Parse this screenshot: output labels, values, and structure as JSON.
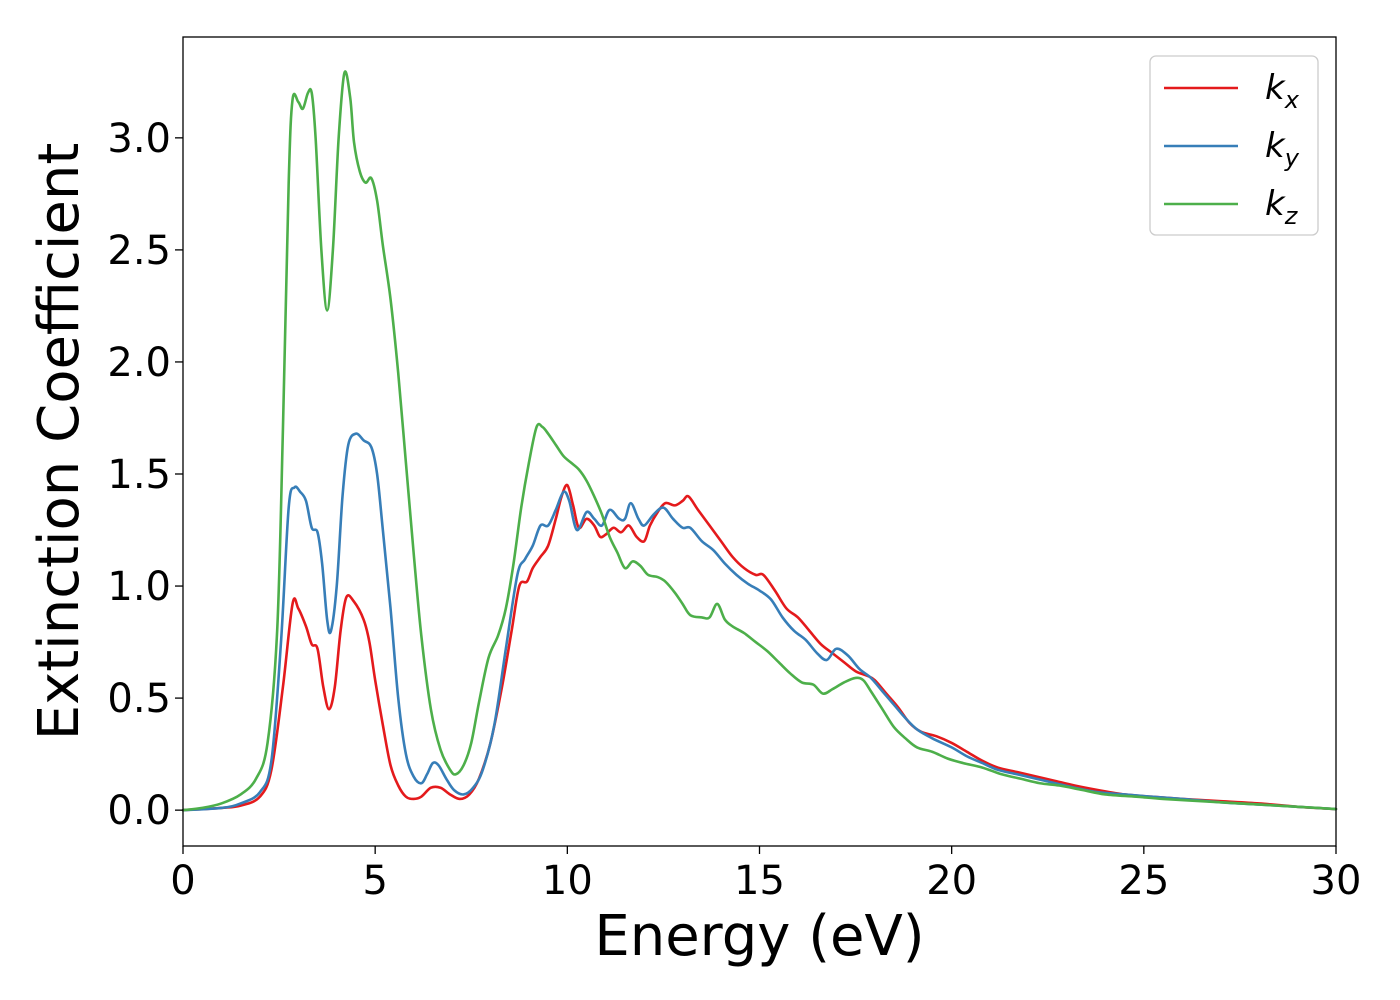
{
  "chart_data": {
    "type": "line",
    "title": "",
    "xlabel": "Energy (eV)",
    "ylabel": "Extinction Coefficient",
    "xlim": [
      0,
      30
    ],
    "ylim": [
      -0.16,
      3.45
    ],
    "xticks": [
      0,
      5,
      10,
      15,
      20,
      25,
      30
    ],
    "xtick_labels": [
      "0",
      "5",
      "10",
      "15",
      "20",
      "25",
      "30"
    ],
    "yticks": [
      0.0,
      0.5,
      1.0,
      1.5,
      2.0,
      2.5,
      3.0
    ],
    "ytick_labels": [
      "0.0",
      "0.5",
      "1.0",
      "1.5",
      "2.0",
      "2.5",
      "3.0"
    ],
    "grid": false,
    "legend_position": "top-right",
    "series": [
      {
        "name": "k_x",
        "legend_main": "k",
        "legend_sub": "x",
        "color": "#e41a1c",
        "points": [
          [
            0,
            0.0
          ],
          [
            1,
            0.01
          ],
          [
            1.5,
            0.02
          ],
          [
            2,
            0.06
          ],
          [
            2.3,
            0.18
          ],
          [
            2.6,
            0.55
          ],
          [
            2.85,
            0.92
          ],
          [
            3.0,
            0.9
          ],
          [
            3.2,
            0.82
          ],
          [
            3.35,
            0.74
          ],
          [
            3.5,
            0.72
          ],
          [
            3.65,
            0.55
          ],
          [
            3.8,
            0.45
          ],
          [
            3.95,
            0.55
          ],
          [
            4.1,
            0.8
          ],
          [
            4.25,
            0.95
          ],
          [
            4.45,
            0.93
          ],
          [
            4.7,
            0.85
          ],
          [
            4.85,
            0.75
          ],
          [
            5.0,
            0.58
          ],
          [
            5.2,
            0.38
          ],
          [
            5.4,
            0.2
          ],
          [
            5.6,
            0.11
          ],
          [
            5.8,
            0.06
          ],
          [
            6.0,
            0.05
          ],
          [
            6.2,
            0.06
          ],
          [
            6.45,
            0.1
          ],
          [
            6.7,
            0.1
          ],
          [
            6.95,
            0.07
          ],
          [
            7.2,
            0.05
          ],
          [
            7.45,
            0.07
          ],
          [
            7.7,
            0.14
          ],
          [
            8.0,
            0.3
          ],
          [
            8.3,
            0.55
          ],
          [
            8.55,
            0.8
          ],
          [
            8.75,
            1.0
          ],
          [
            8.95,
            1.02
          ],
          [
            9.1,
            1.08
          ],
          [
            9.3,
            1.13
          ],
          [
            9.5,
            1.18
          ],
          [
            9.7,
            1.3
          ],
          [
            9.85,
            1.4
          ],
          [
            10.0,
            1.45
          ],
          [
            10.15,
            1.36
          ],
          [
            10.3,
            1.26
          ],
          [
            10.5,
            1.3
          ],
          [
            10.7,
            1.27
          ],
          [
            10.85,
            1.22
          ],
          [
            11.0,
            1.23
          ],
          [
            11.2,
            1.26
          ],
          [
            11.4,
            1.24
          ],
          [
            11.6,
            1.27
          ],
          [
            11.8,
            1.22
          ],
          [
            12.0,
            1.2
          ],
          [
            12.15,
            1.27
          ],
          [
            12.35,
            1.33
          ],
          [
            12.55,
            1.37
          ],
          [
            12.8,
            1.36
          ],
          [
            13.0,
            1.38
          ],
          [
            13.15,
            1.4
          ],
          [
            13.4,
            1.34
          ],
          [
            13.7,
            1.27
          ],
          [
            14.0,
            1.2
          ],
          [
            14.3,
            1.13
          ],
          [
            14.6,
            1.08
          ],
          [
            14.9,
            1.05
          ],
          [
            15.1,
            1.05
          ],
          [
            15.4,
            0.98
          ],
          [
            15.7,
            0.9
          ],
          [
            16.0,
            0.86
          ],
          [
            16.3,
            0.8
          ],
          [
            16.6,
            0.74
          ],
          [
            16.9,
            0.7
          ],
          [
            17.2,
            0.66
          ],
          [
            17.5,
            0.62
          ],
          [
            17.8,
            0.6
          ],
          [
            18.0,
            0.58
          ],
          [
            18.3,
            0.52
          ],
          [
            18.6,
            0.46
          ],
          [
            18.9,
            0.39
          ],
          [
            19.2,
            0.35
          ],
          [
            19.6,
            0.33
          ],
          [
            20.0,
            0.3
          ],
          [
            20.4,
            0.26
          ],
          [
            20.8,
            0.22
          ],
          [
            21.2,
            0.19
          ],
          [
            21.7,
            0.17
          ],
          [
            22.2,
            0.15
          ],
          [
            22.7,
            0.13
          ],
          [
            23.2,
            0.11
          ],
          [
            23.8,
            0.09
          ],
          [
            24.5,
            0.07
          ],
          [
            25.2,
            0.06
          ],
          [
            26.0,
            0.05
          ],
          [
            27.0,
            0.04
          ],
          [
            28.0,
            0.03
          ],
          [
            29.0,
            0.015
          ],
          [
            30.0,
            0.005
          ]
        ]
      },
      {
        "name": "k_y",
        "legend_main": "k",
        "legend_sub": "y",
        "color": "#377eb8",
        "points": [
          [
            0,
            0.0
          ],
          [
            1,
            0.01
          ],
          [
            1.5,
            0.03
          ],
          [
            2,
            0.08
          ],
          [
            2.3,
            0.22
          ],
          [
            2.55,
            0.75
          ],
          [
            2.75,
            1.35
          ],
          [
            2.9,
            1.44
          ],
          [
            3.05,
            1.42
          ],
          [
            3.2,
            1.38
          ],
          [
            3.35,
            1.26
          ],
          [
            3.5,
            1.24
          ],
          [
            3.62,
            1.1
          ],
          [
            3.75,
            0.85
          ],
          [
            3.85,
            0.8
          ],
          [
            4.0,
            1.0
          ],
          [
            4.15,
            1.4
          ],
          [
            4.3,
            1.63
          ],
          [
            4.5,
            1.68
          ],
          [
            4.7,
            1.65
          ],
          [
            4.9,
            1.62
          ],
          [
            5.05,
            1.5
          ],
          [
            5.2,
            1.25
          ],
          [
            5.4,
            0.9
          ],
          [
            5.6,
            0.5
          ],
          [
            5.8,
            0.25
          ],
          [
            6.0,
            0.15
          ],
          [
            6.2,
            0.12
          ],
          [
            6.35,
            0.16
          ],
          [
            6.5,
            0.21
          ],
          [
            6.65,
            0.2
          ],
          [
            6.85,
            0.14
          ],
          [
            7.05,
            0.09
          ],
          [
            7.3,
            0.07
          ],
          [
            7.55,
            0.1
          ],
          [
            7.8,
            0.18
          ],
          [
            8.1,
            0.38
          ],
          [
            8.4,
            0.72
          ],
          [
            8.7,
            1.05
          ],
          [
            8.9,
            1.12
          ],
          [
            9.1,
            1.18
          ],
          [
            9.3,
            1.27
          ],
          [
            9.5,
            1.27
          ],
          [
            9.7,
            1.34
          ],
          [
            9.9,
            1.42
          ],
          [
            10.05,
            1.38
          ],
          [
            10.25,
            1.25
          ],
          [
            10.5,
            1.33
          ],
          [
            10.7,
            1.3
          ],
          [
            10.9,
            1.27
          ],
          [
            11.1,
            1.34
          ],
          [
            11.35,
            1.3
          ],
          [
            11.5,
            1.3
          ],
          [
            11.65,
            1.37
          ],
          [
            11.85,
            1.3
          ],
          [
            12.0,
            1.27
          ],
          [
            12.25,
            1.32
          ],
          [
            12.5,
            1.35
          ],
          [
            12.75,
            1.3
          ],
          [
            13.0,
            1.26
          ],
          [
            13.2,
            1.26
          ],
          [
            13.5,
            1.2
          ],
          [
            13.8,
            1.16
          ],
          [
            14.1,
            1.1
          ],
          [
            14.4,
            1.05
          ],
          [
            14.7,
            1.01
          ],
          [
            15.0,
            0.98
          ],
          [
            15.3,
            0.94
          ],
          [
            15.6,
            0.86
          ],
          [
            15.9,
            0.8
          ],
          [
            16.2,
            0.76
          ],
          [
            16.5,
            0.7
          ],
          [
            16.75,
            0.67
          ],
          [
            17.0,
            0.72
          ],
          [
            17.3,
            0.69
          ],
          [
            17.6,
            0.63
          ],
          [
            17.9,
            0.59
          ],
          [
            18.2,
            0.53
          ],
          [
            18.5,
            0.47
          ],
          [
            18.8,
            0.41
          ],
          [
            19.1,
            0.36
          ],
          [
            19.5,
            0.32
          ],
          [
            20.0,
            0.28
          ],
          [
            20.4,
            0.24
          ],
          [
            20.8,
            0.21
          ],
          [
            21.2,
            0.18
          ],
          [
            21.7,
            0.16
          ],
          [
            22.2,
            0.14
          ],
          [
            22.7,
            0.12
          ],
          [
            23.2,
            0.1
          ],
          [
            23.8,
            0.08
          ],
          [
            24.5,
            0.07
          ],
          [
            25.2,
            0.06
          ],
          [
            26.0,
            0.05
          ],
          [
            27.0,
            0.035
          ],
          [
            28.0,
            0.025
          ],
          [
            29.0,
            0.015
          ],
          [
            30.0,
            0.005
          ]
        ]
      },
      {
        "name": "k_z",
        "legend_main": "k",
        "legend_sub": "z",
        "color": "#4daf4a",
        "points": [
          [
            0,
            0.0
          ],
          [
            0.5,
            0.01
          ],
          [
            1,
            0.03
          ],
          [
            1.5,
            0.07
          ],
          [
            1.9,
            0.14
          ],
          [
            2.2,
            0.3
          ],
          [
            2.45,
            0.8
          ],
          [
            2.6,
            1.7
          ],
          [
            2.75,
            2.8
          ],
          [
            2.85,
            3.17
          ],
          [
            3.0,
            3.16
          ],
          [
            3.12,
            3.13
          ],
          [
            3.25,
            3.2
          ],
          [
            3.35,
            3.2
          ],
          [
            3.45,
            3.0
          ],
          [
            3.6,
            2.5
          ],
          [
            3.75,
            2.23
          ],
          [
            3.9,
            2.5
          ],
          [
            4.05,
            3.0
          ],
          [
            4.2,
            3.29
          ],
          [
            4.35,
            3.18
          ],
          [
            4.45,
            2.98
          ],
          [
            4.6,
            2.85
          ],
          [
            4.75,
            2.8
          ],
          [
            4.9,
            2.82
          ],
          [
            5.05,
            2.72
          ],
          [
            5.2,
            2.52
          ],
          [
            5.4,
            2.28
          ],
          [
            5.6,
            1.95
          ],
          [
            5.8,
            1.55
          ],
          [
            6.0,
            1.15
          ],
          [
            6.2,
            0.78
          ],
          [
            6.45,
            0.45
          ],
          [
            6.7,
            0.27
          ],
          [
            6.95,
            0.18
          ],
          [
            7.1,
            0.16
          ],
          [
            7.3,
            0.2
          ],
          [
            7.5,
            0.3
          ],
          [
            7.7,
            0.48
          ],
          [
            7.95,
            0.68
          ],
          [
            8.2,
            0.78
          ],
          [
            8.4,
            0.9
          ],
          [
            8.6,
            1.1
          ],
          [
            8.8,
            1.35
          ],
          [
            9.0,
            1.55
          ],
          [
            9.2,
            1.71
          ],
          [
            9.35,
            1.71
          ],
          [
            9.5,
            1.68
          ],
          [
            9.7,
            1.63
          ],
          [
            9.9,
            1.58
          ],
          [
            10.1,
            1.55
          ],
          [
            10.3,
            1.52
          ],
          [
            10.5,
            1.47
          ],
          [
            10.7,
            1.4
          ],
          [
            10.9,
            1.32
          ],
          [
            11.1,
            1.22
          ],
          [
            11.3,
            1.15
          ],
          [
            11.5,
            1.08
          ],
          [
            11.7,
            1.11
          ],
          [
            11.9,
            1.09
          ],
          [
            12.1,
            1.05
          ],
          [
            12.35,
            1.04
          ],
          [
            12.55,
            1.02
          ],
          [
            12.8,
            0.97
          ],
          [
            13.0,
            0.92
          ],
          [
            13.2,
            0.87
          ],
          [
            13.5,
            0.86
          ],
          [
            13.7,
            0.86
          ],
          [
            13.9,
            0.92
          ],
          [
            14.1,
            0.85
          ],
          [
            14.3,
            0.82
          ],
          [
            14.6,
            0.79
          ],
          [
            14.9,
            0.75
          ],
          [
            15.2,
            0.71
          ],
          [
            15.5,
            0.66
          ],
          [
            15.8,
            0.61
          ],
          [
            16.1,
            0.57
          ],
          [
            16.4,
            0.56
          ],
          [
            16.65,
            0.52
          ],
          [
            16.9,
            0.54
          ],
          [
            17.2,
            0.57
          ],
          [
            17.5,
            0.59
          ],
          [
            17.7,
            0.58
          ],
          [
            17.9,
            0.53
          ],
          [
            18.2,
            0.45
          ],
          [
            18.5,
            0.37
          ],
          [
            18.8,
            0.32
          ],
          [
            19.1,
            0.28
          ],
          [
            19.5,
            0.26
          ],
          [
            19.9,
            0.23
          ],
          [
            20.3,
            0.21
          ],
          [
            20.8,
            0.19
          ],
          [
            21.3,
            0.16
          ],
          [
            21.8,
            0.14
          ],
          [
            22.3,
            0.12
          ],
          [
            22.8,
            0.11
          ],
          [
            23.4,
            0.09
          ],
          [
            24.0,
            0.07
          ],
          [
            24.8,
            0.06
          ],
          [
            25.5,
            0.05
          ],
          [
            26.5,
            0.04
          ],
          [
            27.5,
            0.03
          ],
          [
            28.5,
            0.02
          ],
          [
            29.3,
            0.012
          ],
          [
            30.0,
            0.005
          ]
        ]
      }
    ]
  }
}
